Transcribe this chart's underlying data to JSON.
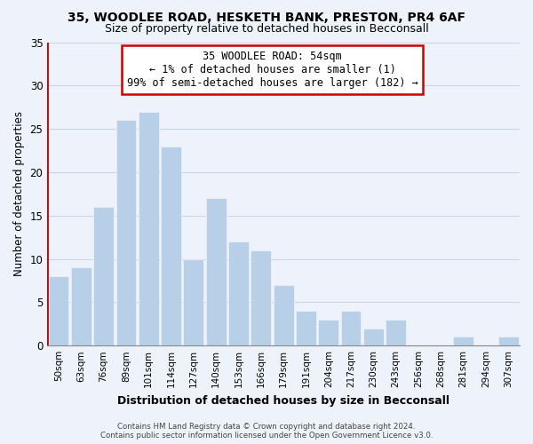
{
  "title1": "35, WOODLEE ROAD, HESKETH BANK, PRESTON, PR4 6AF",
  "title2": "Size of property relative to detached houses in Becconsall",
  "xlabel": "Distribution of detached houses by size in Becconsall",
  "ylabel": "Number of detached properties",
  "bar_labels": [
    "50sqm",
    "63sqm",
    "76sqm",
    "89sqm",
    "101sqm",
    "114sqm",
    "127sqm",
    "140sqm",
    "153sqm",
    "166sqm",
    "179sqm",
    "191sqm",
    "204sqm",
    "217sqm",
    "230sqm",
    "243sqm",
    "256sqm",
    "268sqm",
    "281sqm",
    "294sqm",
    "307sqm"
  ],
  "bar_values": [
    8,
    9,
    16,
    26,
    27,
    23,
    10,
    17,
    12,
    11,
    7,
    4,
    3,
    4,
    2,
    3,
    0,
    0,
    1,
    0,
    1
  ],
  "bar_color": "#b8cfe8",
  "highlight_color": "#cc0000",
  "ylim": [
    0,
    35
  ],
  "yticks": [
    0,
    5,
    10,
    15,
    20,
    25,
    30,
    35
  ],
  "annotation_title": "35 WOODLEE ROAD: 54sqm",
  "annotation_line1": "← 1% of detached houses are smaller (1)",
  "annotation_line2": "99% of semi-detached houses are larger (182) →",
  "footer1": "Contains HM Land Registry data © Crown copyright and database right 2024.",
  "footer2": "Contains public sector information licensed under the Open Government Licence v3.0.",
  "bg_color": "#eef2fb",
  "plot_bg_color": "#eef2fb",
  "grid_color": "#c8d4e8"
}
